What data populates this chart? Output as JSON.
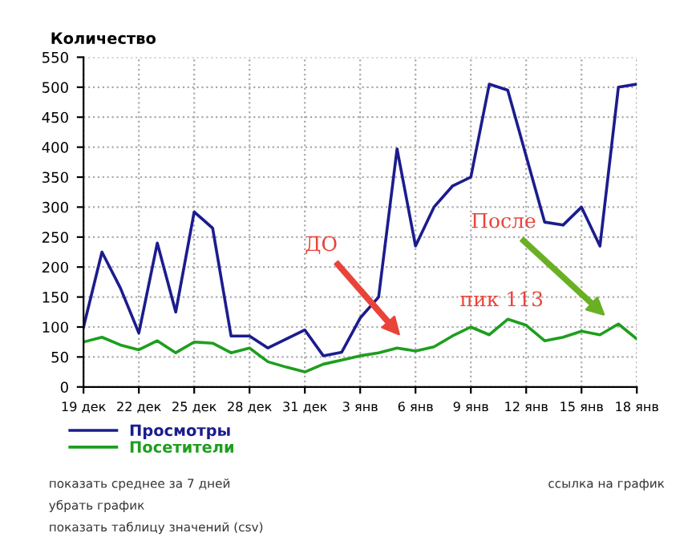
{
  "chart_data": {
    "type": "line",
    "ylabel": "Количество",
    "categories": [
      "19 дек",
      null,
      null,
      "22 дек",
      null,
      null,
      "25 дек",
      null,
      null,
      "28 дек",
      null,
      null,
      "31 дек",
      null,
      null,
      "3 янв",
      null,
      null,
      "6 янв",
      null,
      null,
      "9 янв",
      null,
      null,
      "12 янв",
      null,
      null,
      "15 янв",
      null,
      null,
      "18 янв"
    ],
    "series": [
      {
        "name": "Просмотры",
        "color": "#1c1c8e",
        "values": [
          100,
          225,
          165,
          90,
          240,
          125,
          292,
          265,
          85,
          85,
          65,
          80,
          95,
          52,
          58,
          115,
          150,
          397,
          235,
          300,
          335,
          350,
          505,
          495,
          385,
          275,
          270,
          300,
          235,
          500,
          505
        ]
      },
      {
        "name": "Посетители",
        "color": "#1e9e1e",
        "values": [
          75,
          83,
          70,
          62,
          77,
          57,
          75,
          73,
          57,
          65,
          42,
          33,
          25,
          38,
          45,
          52,
          57,
          65,
          60,
          67,
          85,
          100,
          87,
          113,
          103,
          77,
          83,
          93,
          87,
          105,
          80
        ]
      }
    ],
    "ylim": [
      0,
      550
    ],
    "yticks": [
      0,
      50,
      100,
      150,
      200,
      250,
      300,
      350,
      400,
      450,
      500,
      550
    ],
    "grid": true,
    "legend": "bottom left",
    "marker": "none",
    "line_style": "solid",
    "annotations": [
      "ДО",
      "После",
      "пик 113",
      "показать среднее за 7 дней",
      "убрать график",
      "показать таблицу значений (csv)",
      "ссылка на график"
    ]
  }
}
